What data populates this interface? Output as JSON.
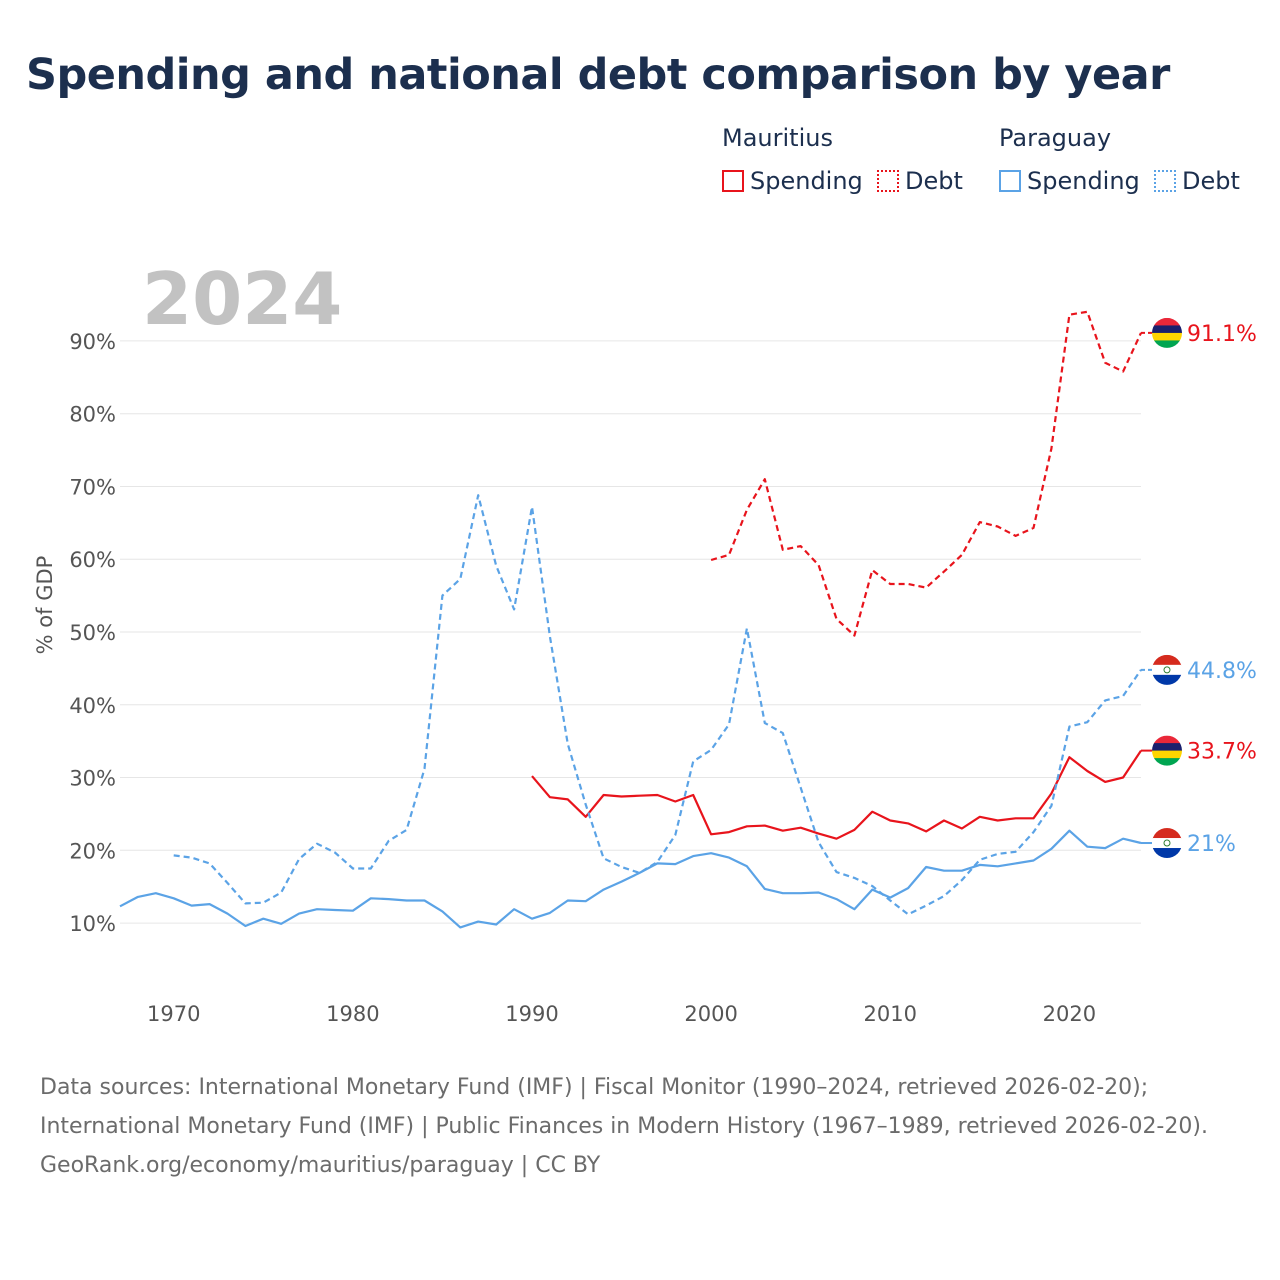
{
  "title": "Spending and national debt comparison by year",
  "year_watermark": "2024",
  "legend": {
    "groups": [
      {
        "country": "Mauritius",
        "items": [
          {
            "label": "Spending",
            "style": "solid"
          },
          {
            "label": "Debt",
            "style": "dotted"
          }
        ],
        "color": "#e8141c"
      },
      {
        "country": "Paraguay",
        "items": [
          {
            "label": "Spending",
            "style": "solid"
          },
          {
            "label": "Debt",
            "style": "dotted"
          }
        ],
        "color": "#5ba3e6"
      }
    ]
  },
  "source": {
    "line1": "Data sources: International Monetary Fund (IMF) | Fiscal Monitor (1990–2024, retrieved 2026-02-20); International Monetary Fund (IMF) | Public Finances in Modern History (1967–1989, retrieved 2026-02-20).",
    "line2": "GeoRank.org/economy/mauritius/paraguay | CC BY"
  },
  "chart_data": {
    "type": "line",
    "title": "Spending and national debt comparison by year",
    "xlabel": "",
    "ylabel": "% of GDP",
    "xlim": [
      1967,
      2024
    ],
    "ylim": [
      3,
      97
    ],
    "yticks": [
      10,
      20,
      30,
      40,
      50,
      60,
      70,
      80,
      90
    ],
    "ytick_labels": [
      "10%",
      "20%",
      "30%",
      "40%",
      "50%",
      "60%",
      "70%",
      "80%",
      "90%"
    ],
    "xticks": [
      1970,
      1980,
      1990,
      2000,
      2010,
      2020
    ],
    "xtick_labels": [
      "1970",
      "1980",
      "1990",
      "2000",
      "2010",
      "2020"
    ],
    "series": [
      {
        "name": "Mauritius Spending",
        "country": "Mauritius",
        "color": "#e8141c",
        "dashed": false,
        "end_label": "33.7%",
        "flag": "mauritius",
        "x": [
          1990,
          1991,
          1992,
          1993,
          1994,
          1995,
          1996,
          1997,
          1998,
          1999,
          2000,
          2001,
          2002,
          2003,
          2004,
          2005,
          2006,
          2007,
          2008,
          2009,
          2010,
          2011,
          2012,
          2013,
          2014,
          2015,
          2016,
          2017,
          2018,
          2019,
          2020,
          2021,
          2022,
          2023,
          2024
        ],
        "values": [
          30.2,
          27.3,
          27.0,
          24.6,
          27.6,
          27.4,
          27.5,
          27.6,
          26.7,
          27.6,
          22.2,
          22.5,
          23.3,
          23.4,
          22.7,
          23.1,
          22.3,
          21.6,
          22.8,
          25.3,
          24.1,
          23.7,
          22.6,
          24.1,
          23.0,
          24.6,
          24.1,
          24.4,
          24.4,
          27.8,
          32.8,
          30.9,
          29.4,
          30.0,
          33.7
        ]
      },
      {
        "name": "Mauritius Debt",
        "country": "Mauritius",
        "color": "#e8141c",
        "dashed": true,
        "end_label": "91.1%",
        "flag": "mauritius",
        "x": [
          2000,
          2001,
          2002,
          2003,
          2004,
          2005,
          2006,
          2007,
          2008,
          2009,
          2010,
          2011,
          2012,
          2013,
          2014,
          2015,
          2016,
          2017,
          2018,
          2019,
          2020,
          2021,
          2022,
          2023,
          2024
        ],
        "values": [
          59.9,
          60.6,
          66.8,
          71.0,
          61.3,
          61.8,
          59.2,
          51.8,
          49.5,
          58.5,
          56.6,
          56.6,
          56.1,
          58.3,
          60.6,
          65.1,
          64.5,
          63.2,
          64.3,
          75.2,
          93.6,
          94.0,
          87.0,
          85.8,
          91.1
        ]
      },
      {
        "name": "Paraguay Spending",
        "country": "Paraguay",
        "color": "#5ba3e6",
        "dashed": false,
        "end_label": "21%",
        "flag": "paraguay",
        "x": [
          1967,
          1968,
          1969,
          1970,
          1971,
          1972,
          1973,
          1974,
          1975,
          1976,
          1977,
          1978,
          1979,
          1980,
          1981,
          1982,
          1983,
          1984,
          1985,
          1986,
          1987,
          1988,
          1989,
          1990,
          1991,
          1992,
          1993,
          1994,
          1995,
          1996,
          1997,
          1998,
          1999,
          2000,
          2001,
          2002,
          2003,
          2004,
          2005,
          2006,
          2007,
          2008,
          2009,
          2010,
          2011,
          2012,
          2013,
          2014,
          2015,
          2016,
          2017,
          2018,
          2019,
          2020,
          2021,
          2022,
          2023,
          2024
        ],
        "values": [
          12.3,
          13.6,
          14.1,
          13.4,
          12.4,
          12.6,
          11.3,
          9.6,
          10.6,
          9.9,
          11.3,
          11.9,
          11.8,
          11.7,
          13.4,
          13.3,
          13.1,
          13.1,
          11.6,
          9.4,
          10.2,
          9.8,
          11.9,
          10.6,
          11.4,
          13.1,
          13.0,
          14.6,
          15.7,
          16.9,
          18.2,
          18.1,
          19.2,
          19.6,
          19.0,
          17.8,
          14.7,
          14.1,
          14.1,
          14.2,
          13.3,
          11.9,
          14.6,
          13.5,
          14.8,
          17.7,
          17.2,
          17.2,
          18.0,
          17.8,
          18.2,
          18.6,
          20.2,
          22.7,
          20.5,
          20.3,
          21.6,
          21.0
        ]
      },
      {
        "name": "Paraguay Debt",
        "country": "Paraguay",
        "color": "#5ba3e6",
        "dashed": true,
        "end_label": "44.8%",
        "flag": "paraguay",
        "x": [
          1970,
          1971,
          1972,
          1973,
          1974,
          1975,
          1976,
          1977,
          1978,
          1979,
          1980,
          1981,
          1982,
          1983,
          1984,
          1985,
          1986,
          1987,
          1988,
          1989,
          1990,
          1991,
          1992,
          1993,
          1994,
          1995,
          1996,
          1997,
          1998,
          1999,
          2000,
          2001,
          2002,
          2003,
          2004,
          2005,
          2006,
          2007,
          2008,
          2009,
          2010,
          2011,
          2012,
          2013,
          2014,
          2015,
          2016,
          2017,
          2018,
          2019,
          2020,
          2021,
          2022,
          2023,
          2024
        ],
        "values": [
          19.3,
          19.0,
          18.2,
          15.5,
          12.7,
          12.8,
          14.2,
          18.8,
          20.9,
          19.7,
          17.5,
          17.5,
          21.3,
          22.8,
          31.2,
          55.0,
          57.3,
          68.8,
          59.1,
          53.1,
          67.2,
          49.4,
          34.6,
          26.3,
          18.9,
          17.7,
          16.9,
          18.4,
          22.1,
          32.2,
          33.8,
          37.3,
          50.5,
          37.5,
          36.1,
          28.6,
          21.1,
          17.0,
          16.2,
          15.1,
          13.1,
          11.2,
          12.4,
          13.7,
          15.9,
          18.7,
          19.5,
          19.8,
          22.5,
          26.1,
          37.0,
          37.6,
          40.6,
          41.2,
          44.8
        ]
      }
    ]
  }
}
